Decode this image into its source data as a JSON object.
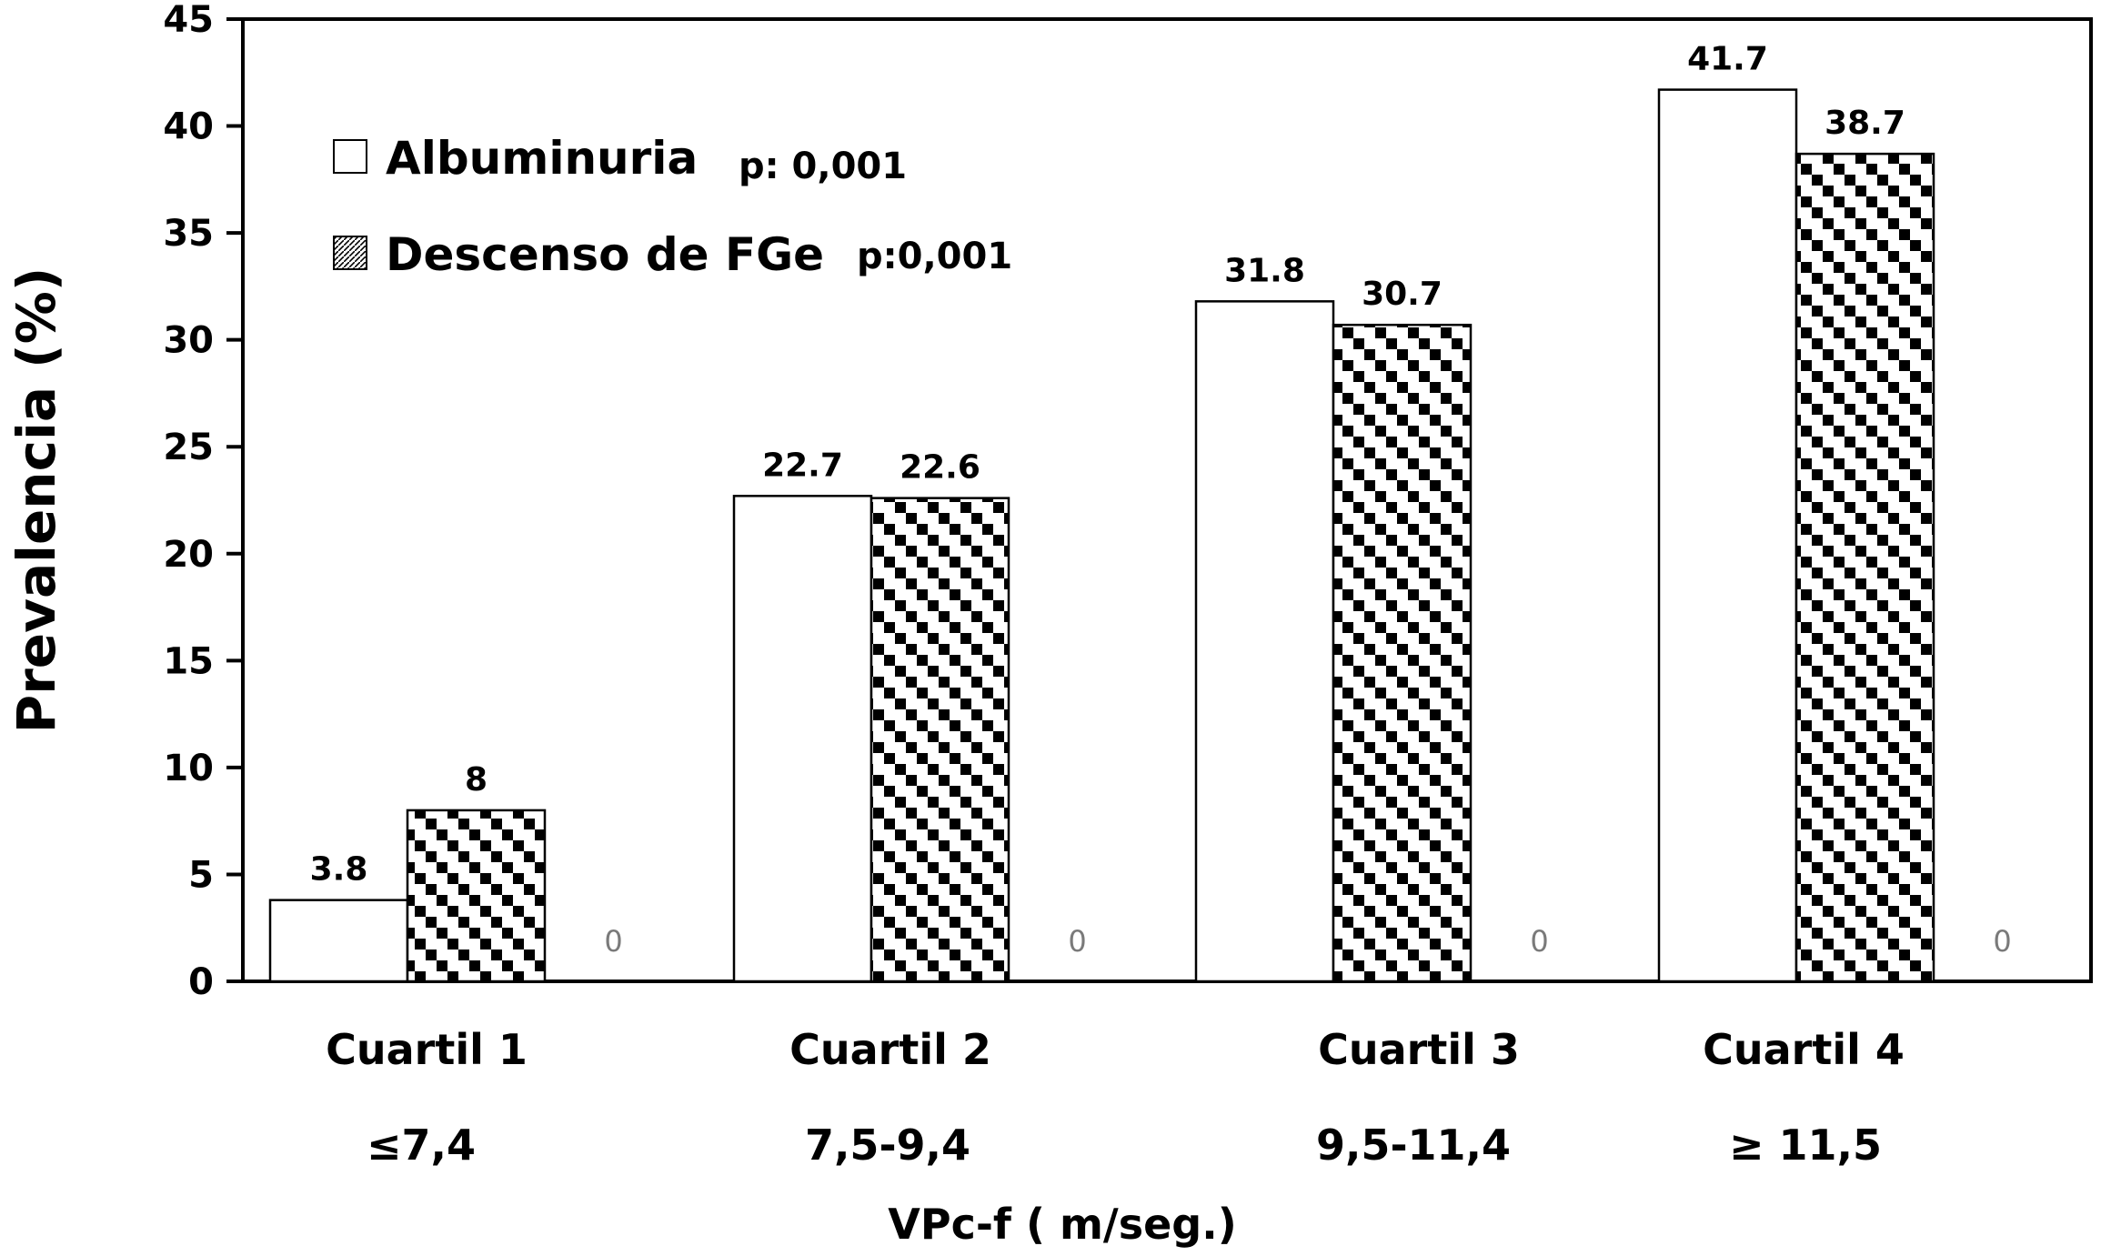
{
  "chart_data": {
    "type": "bar",
    "ylabel": "Prevalencia (%)",
    "xlabel": "VPc-f ( m/seg.)",
    "ylim": [
      0,
      45
    ],
    "yticks": [
      "0",
      "5",
      "10",
      "15",
      "20",
      "25",
      "30",
      "35",
      "40",
      "45"
    ],
    "categories": [
      "Cuartil 1",
      "Cuartil 2",
      "Cuartil 3",
      "Cuartil 4"
    ],
    "category_ranges": [
      "≤7,4",
      "7,5-9,4",
      "9,5-11,4",
      "≥ 11,5"
    ],
    "legend_position": "top-left",
    "grid": false,
    "series": [
      {
        "name": "Albuminuria",
        "pvalue": "p: 0,001",
        "pattern": "solid-white",
        "values": [
          3.8,
          22.7,
          31.8,
          41.7
        ],
        "labels": [
          "3.8",
          "22.7",
          "31.8",
          "41.7"
        ]
      },
      {
        "name": "Descenso de FGe",
        "pvalue": "p:0,001",
        "pattern": "checker",
        "values": [
          8,
          22.6,
          30.7,
          38.7
        ],
        "labels": [
          "8",
          "22.6",
          "30.7",
          "38.7"
        ]
      },
      {
        "values": [
          0,
          0,
          0,
          0
        ],
        "labels": [
          "0",
          "0",
          "0",
          "0"
        ]
      }
    ],
    "colors": {
      "bar_fill": "#ffffff",
      "pattern_dark": "#000000",
      "axis": "#000000",
      "ghost_label": "#7a7a7a"
    }
  }
}
